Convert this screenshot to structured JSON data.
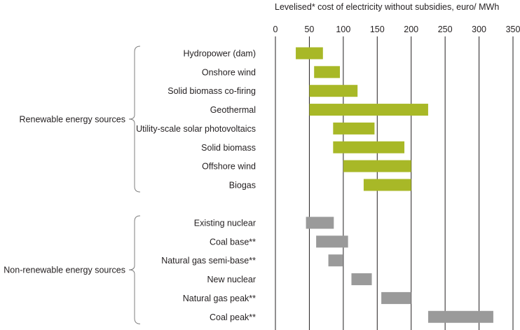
{
  "chart_data": {
    "type": "bar",
    "orientation": "horizontal",
    "subtype": "floating-range",
    "xlabel": "Levelised* cost of electricity without subsidies, euro/ MWh",
    "xlim": [
      0,
      350
    ],
    "xticks": [
      0,
      50,
      100,
      150,
      200,
      250,
      300,
      350
    ],
    "grid": true,
    "colors": {
      "renewable": "#a8b827",
      "non_renewable": "#9a9a9a",
      "axis": "#231f20"
    },
    "groups": [
      {
        "name": "Renewable energy sources",
        "color_key": "renewable",
        "items": [
          {
            "label": "Hydropower (dam)",
            "min": 30,
            "max": 70
          },
          {
            "label": "Onshore wind",
            "min": 57,
            "max": 95
          },
          {
            "label": "Solid biomass co-firing",
            "min": 50,
            "max": 121
          },
          {
            "label": "Geothermal",
            "min": 50,
            "max": 225
          },
          {
            "label": "Utility-scale solar photovoltaics",
            "min": 85,
            "max": 146
          },
          {
            "label": "Solid biomass",
            "min": 85,
            "max": 190
          },
          {
            "label": "Offshore wind",
            "min": 100,
            "max": 200
          },
          {
            "label": "Biogas",
            "min": 130,
            "max": 200
          }
        ]
      },
      {
        "name": "Non-renewable energy sources",
        "color_key": "non_renewable",
        "items": [
          {
            "label": "Existing nuclear",
            "min": 45,
            "max": 86
          },
          {
            "label": "Coal base**",
            "min": 60,
            "max": 107
          },
          {
            "label": "Natural gas semi-base**",
            "min": 78,
            "max": 99
          },
          {
            "label": "New nuclear",
            "min": 112,
            "max": 142
          },
          {
            "label": "Natural gas peak**",
            "min": 156,
            "max": 200
          },
          {
            "label": "Coal peak**",
            "min": 225,
            "max": 321
          }
        ]
      }
    ]
  }
}
